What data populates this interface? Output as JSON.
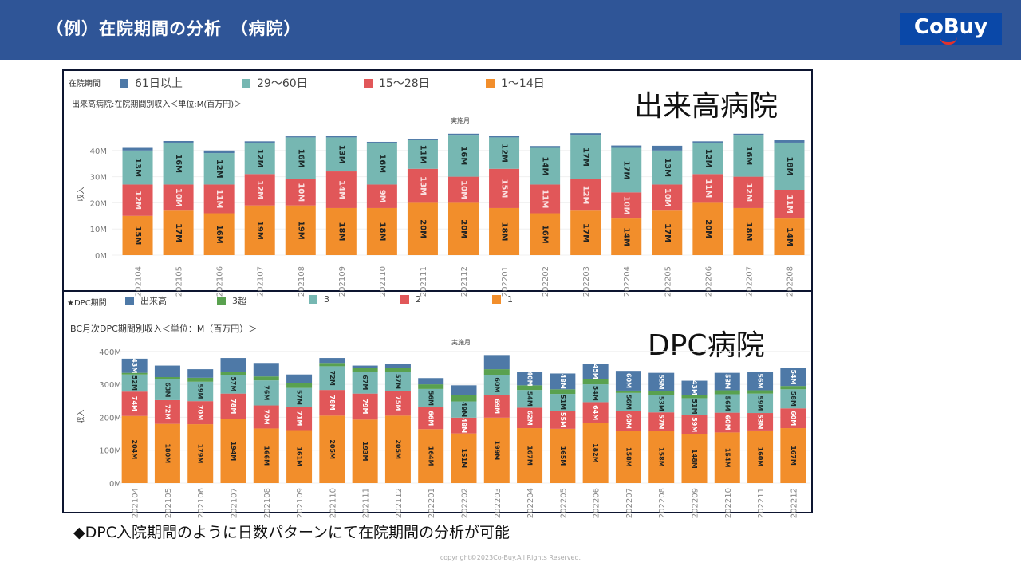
{
  "header": {
    "title": "（例）在院期間の分析　（病院）",
    "logo": "CoBuy"
  },
  "labels": {
    "top_hospital": "出来高病院",
    "bottom_hospital": "DPC病院"
  },
  "note": "◆DPC入院期間のように日数パターンにて在院期間の分析が可能",
  "copyright": "copyright©2023Co-Buy.All  Rights  Reserved.",
  "chart_data": [
    {
      "type": "bar",
      "stacked": true,
      "title": "出来高病院:在院期間別収入＜単位:M(百万円)＞",
      "legend_title": "在院期間",
      "legend_placement": "top",
      "xlabel": "実施月",
      "ylabel": "収入",
      "ylim": [
        0,
        47
      ],
      "yticks": [
        "0M",
        "10M",
        "20M",
        "30M",
        "40M"
      ],
      "ytick_values": [
        0,
        10,
        20,
        30,
        40
      ],
      "categories": [
        "202104",
        "202105",
        "202106",
        "202107",
        "202108",
        "202109",
        "202110",
        "202111",
        "202112",
        "202201",
        "202202",
        "202203",
        "202204",
        "202205",
        "202206",
        "202207",
        "202208"
      ],
      "series": [
        {
          "name": "1～14日",
          "color": "#f28e2b",
          "values": [
            15,
            17,
            16,
            19,
            19,
            18,
            18,
            20,
            20,
            18,
            16,
            17,
            14,
            17,
            20,
            18,
            14
          ],
          "label_color": "#222"
        },
        {
          "name": "15～28日",
          "color": "#e15759",
          "values": [
            12,
            10,
            11,
            12,
            10,
            14,
            9,
            13,
            10,
            15,
            11,
            12,
            10,
            10,
            11,
            12,
            11
          ],
          "label_color": "#fbe3e3"
        },
        {
          "name": "29～60日",
          "color": "#76b7b2",
          "values": [
            13,
            16,
            12,
            12,
            16,
            13,
            16,
            11,
            16,
            12,
            14,
            17,
            17,
            13,
            12,
            16,
            18
          ],
          "label_color": "#1c2b2a"
        },
        {
          "name": "61日以上",
          "color": "#4e79a7",
          "values": [
            1,
            0.6,
            1,
            0.5,
            0.4,
            0.5,
            0.3,
            0.5,
            0.4,
            0.5,
            0.7,
            0.6,
            0.9,
            1.8,
            0.5,
            0.4,
            0.9
          ],
          "label_color": "#fff",
          "labeled": false
        }
      ],
      "legend_order": [
        "61日以上",
        "29～60日",
        "15～28日",
        "1～14日"
      ]
    },
    {
      "type": "bar",
      "stacked": true,
      "title": "BC月次DPC期間別収入＜単位：M（百万円）＞",
      "legend_title": "★DPC期間",
      "legend_placement": "top",
      "xlabel": "実施月",
      "ylabel": "収入",
      "ylim": [
        0,
        400
      ],
      "yticks": [
        "0M",
        "100M",
        "200M",
        "300M",
        "400M"
      ],
      "ytick_values": [
        0,
        100,
        200,
        300,
        400
      ],
      "categories": [
        "202104",
        "202105",
        "202106",
        "202107",
        "202108",
        "202109",
        "202110",
        "202111",
        "202112",
        "202201",
        "202202",
        "202203",
        "202204",
        "202205",
        "202206",
        "202207",
        "202208",
        "202209",
        "202210",
        "202211",
        "202212"
      ],
      "series": [
        {
          "name": "1",
          "color": "#f28e2b",
          "values": [
            204,
            180,
            179,
            194,
            166,
            161,
            205,
            193,
            205,
            164,
            151,
            199,
            167,
            165,
            182,
            158,
            158,
            148,
            154,
            160,
            167
          ],
          "label_color": "#222"
        },
        {
          "name": "2",
          "color": "#e15759",
          "values": [
            74,
            72,
            70,
            78,
            70,
            71,
            78,
            79,
            75,
            66,
            48,
            69,
            62,
            55,
            64,
            60,
            57,
            59,
            60,
            53,
            60
          ],
          "label_color": "#fff"
        },
        {
          "name": "3",
          "color": "#76b7b2",
          "values": [
            52,
            63,
            59,
            57,
            76,
            57,
            72,
            67,
            57,
            56,
            49,
            60,
            54,
            51,
            54,
            56,
            53,
            51,
            56,
            59,
            58
          ],
          "label_color": "#1c2b2a"
        },
        {
          "name": "3超",
          "color": "#59a14f",
          "values": [
            5,
            7,
            12,
            10,
            12,
            16,
            10,
            10,
            12,
            14,
            20,
            18,
            14,
            14,
            16,
            7,
            12,
            10,
            12,
            10,
            10
          ],
          "labeled": false
        },
        {
          "name": "出来高",
          "color": "#4e79a7",
          "values": [
            43,
            35,
            26,
            41,
            41,
            25,
            15,
            8,
            12,
            19,
            29,
            43,
            40,
            48,
            45,
            60,
            55,
            43,
            53,
            56,
            54
          ],
          "label_color": "#fff",
          "shown_labels": [
            true,
            false,
            false,
            false,
            false,
            false,
            false,
            false,
            false,
            false,
            false,
            false,
            true,
            true,
            true,
            true,
            true,
            true,
            true,
            true,
            true
          ]
        }
      ],
      "legend_order": [
        "出来高",
        "3超",
        "3",
        "2",
        "1"
      ]
    }
  ]
}
